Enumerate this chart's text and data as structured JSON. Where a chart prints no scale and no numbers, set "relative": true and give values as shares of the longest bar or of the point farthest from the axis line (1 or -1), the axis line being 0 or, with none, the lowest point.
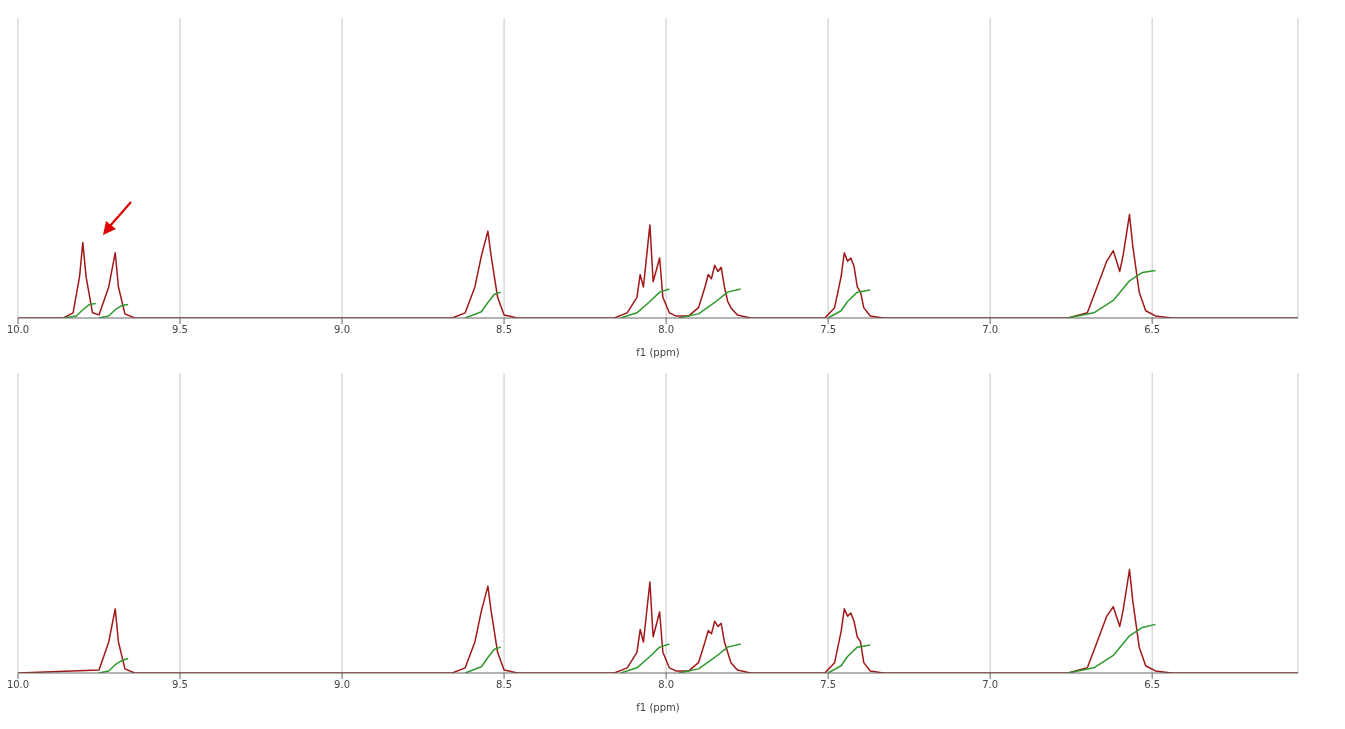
{
  "chart_data": [
    {
      "type": "line",
      "relative": true,
      "xlabel": "f1 (ppm)",
      "xlim": [
        10.0,
        6.05
      ],
      "xticks": [
        {
          "value": 10,
          "label": "10.0"
        },
        9.5,
        {
          "value": 9,
          "label": "9.0"
        },
        8.5,
        {
          "value": 8,
          "label": "8.0"
        },
        7.5,
        {
          "value": 7,
          "label": "7.0"
        },
        6.5
      ],
      "grid": "x",
      "series": [
        {
          "color": "#a01818",
          "x": [
            10.0,
            9.86,
            9.83,
            9.81,
            9.8,
            9.79,
            9.77,
            9.75,
            9.72,
            9.7,
            9.69,
            9.67,
            9.64,
            8.66,
            8.62,
            8.59,
            8.57,
            8.55,
            8.54,
            8.52,
            8.5,
            8.46,
            8.16,
            8.12,
            8.09,
            8.08,
            8.07,
            8.05,
            8.04,
            8.02,
            8.01,
            7.99,
            7.97,
            7.93,
            7.9,
            7.88,
            7.87,
            7.86,
            7.85,
            7.84,
            7.83,
            7.82,
            7.81,
            7.8,
            7.78,
            7.74,
            7.51,
            7.48,
            7.46,
            7.45,
            7.44,
            7.43,
            7.42,
            7.41,
            7.4,
            7.39,
            7.37,
            7.33,
            6.76,
            6.7,
            6.67,
            6.64,
            6.62,
            6.6,
            6.59,
            6.57,
            6.56,
            6.54,
            6.52,
            6.49,
            6.44,
            6.05
          ],
          "values": [
            0,
            0,
            0.05,
            0.4,
            0.73,
            0.4,
            0.05,
            0.03,
            0.3,
            0.63,
            0.3,
            0.04,
            0,
            0,
            0.05,
            0.3,
            0.6,
            0.84,
            0.6,
            0.2,
            0.03,
            0,
            0,
            0.05,
            0.2,
            0.42,
            0.3,
            0.9,
            0.35,
            0.58,
            0.2,
            0.05,
            0.02,
            0.02,
            0.1,
            0.3,
            0.42,
            0.38,
            0.51,
            0.45,
            0.49,
            0.3,
            0.16,
            0.1,
            0.03,
            0,
            0,
            0.1,
            0.4,
            0.63,
            0.55,
            0.58,
            0.5,
            0.3,
            0.25,
            0.1,
            0.02,
            0,
            0,
            0.05,
            0.3,
            0.55,
            0.65,
            0.45,
            0.6,
            1.0,
            0.7,
            0.25,
            0.07,
            0.02,
            0,
            0
          ]
        },
        {
          "color": "#2e9a2e",
          "x": [
            9.86,
            9.82,
            9.8,
            9.78,
            9.76,
            9.755,
            9.75,
            9.72,
            9.7,
            9.68,
            9.66,
            9.0,
            8.62,
            8.57,
            8.55,
            8.53,
            8.51,
            8.3,
            8.14,
            8.09,
            8.05,
            8.02,
            7.99,
            7.975,
            7.96,
            7.9,
            7.85,
            7.81,
            7.77,
            7.6,
            7.5,
            7.46,
            7.44,
            7.41,
            7.37,
            7.0,
            6.76,
            6.68,
            6.62,
            6.57,
            6.53,
            6.49
          ],
          "values": [
            0,
            0.02,
            0.08,
            0.13,
            0.14,
            null,
            0,
            0.02,
            0.08,
            0.12,
            0.13,
            null,
            0,
            0.06,
            0.15,
            0.23,
            0.25,
            null,
            0,
            0.05,
            0.16,
            0.25,
            0.28,
            null,
            0,
            0.04,
            0.15,
            0.25,
            0.28,
            null,
            0,
            0.07,
            0.16,
            0.25,
            0.27,
            null,
            0,
            0.05,
            0.17,
            0.36,
            0.44,
            0.46
          ]
        }
      ]
    },
    {
      "type": "line",
      "relative": true,
      "xlabel": "f1 (ppm)",
      "xlim": [
        10.0,
        6.05
      ],
      "xticks": [
        {
          "value": 10,
          "label": "10.0"
        },
        9.5,
        {
          "value": 9,
          "label": "9.0"
        },
        8.5,
        {
          "value": 8,
          "label": "8.0"
        },
        7.5,
        {
          "value": 7,
          "label": "7.0"
        },
        6.5
      ],
      "grid": "x",
      "series": [
        {
          "color": "#a01818",
          "x": [
            10.0,
            9.75,
            9.72,
            9.7,
            9.69,
            9.67,
            9.64,
            8.66,
            8.62,
            8.59,
            8.57,
            8.55,
            8.54,
            8.52,
            8.5,
            8.46,
            8.16,
            8.12,
            8.09,
            8.08,
            8.07,
            8.05,
            8.04,
            8.02,
            8.01,
            7.99,
            7.97,
            7.93,
            7.9,
            7.88,
            7.87,
            7.86,
            7.85,
            7.84,
            7.83,
            7.82,
            7.81,
            7.8,
            7.78,
            7.74,
            7.51,
            7.48,
            7.46,
            7.45,
            7.44,
            7.43,
            7.42,
            7.41,
            7.4,
            7.39,
            7.37,
            7.33,
            6.76,
            6.7,
            6.67,
            6.64,
            6.62,
            6.6,
            6.59,
            6.57,
            6.56,
            6.54,
            6.52,
            6.49,
            6.44,
            6.05
          ],
          "values": [
            0,
            0.03,
            0.3,
            0.62,
            0.3,
            0.04,
            0,
            0,
            0.05,
            0.3,
            0.6,
            0.84,
            0.6,
            0.2,
            0.03,
            0,
            0,
            0.05,
            0.2,
            0.42,
            0.3,
            0.88,
            0.35,
            0.59,
            0.2,
            0.05,
            0.02,
            0.02,
            0.1,
            0.3,
            0.41,
            0.38,
            0.5,
            0.45,
            0.48,
            0.3,
            0.2,
            0.1,
            0.03,
            0,
            0,
            0.1,
            0.4,
            0.62,
            0.55,
            0.58,
            0.5,
            0.35,
            0.3,
            0.1,
            0.02,
            0,
            0,
            0.05,
            0.3,
            0.55,
            0.64,
            0.45,
            0.6,
            1.0,
            0.7,
            0.25,
            0.07,
            0.02,
            0,
            0
          ]
        },
        {
          "color": "#2e9a2e",
          "x": [
            9.75,
            9.72,
            9.7,
            9.68,
            9.66,
            9.0,
            8.62,
            8.57,
            8.55,
            8.53,
            8.51,
            8.3,
            8.14,
            8.09,
            8.05,
            8.02,
            7.99,
            7.975,
            7.96,
            7.9,
            7.85,
            7.81,
            7.77,
            7.6,
            7.5,
            7.46,
            7.44,
            7.41,
            7.37,
            7.0,
            6.76,
            6.68,
            6.62,
            6.57,
            6.53,
            6.49
          ],
          "values": [
            0,
            0.02,
            0.08,
            0.12,
            0.14,
            null,
            0,
            0.06,
            0.15,
            0.23,
            0.25,
            null,
            0,
            0.05,
            0.16,
            0.25,
            0.28,
            null,
            0,
            0.04,
            0.15,
            0.25,
            0.28,
            null,
            0,
            0.07,
            0.16,
            0.25,
            0.27,
            null,
            0,
            0.05,
            0.17,
            0.36,
            0.44,
            0.47
          ]
        }
      ]
    }
  ]
}
